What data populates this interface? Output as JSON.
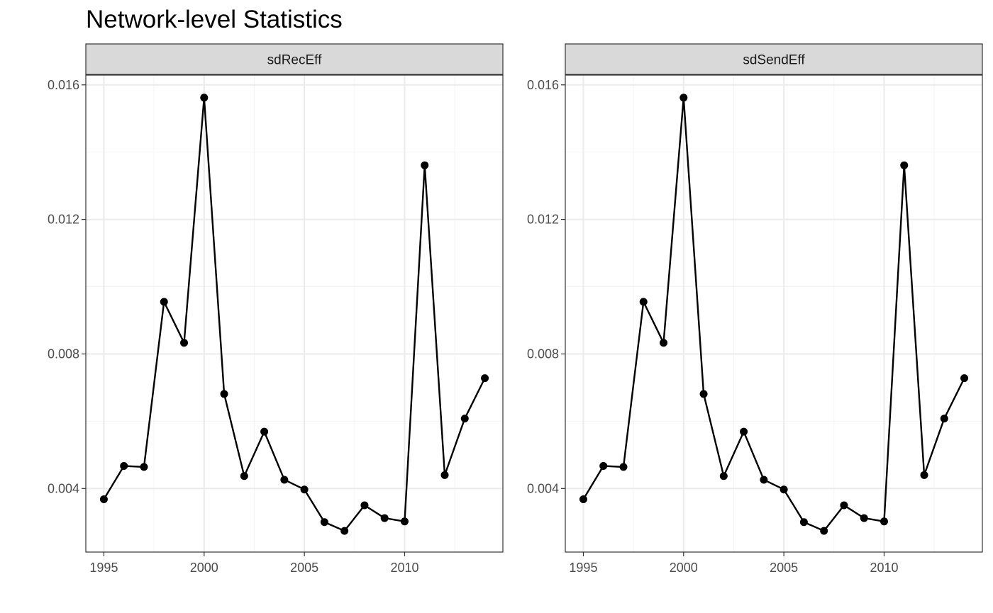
{
  "title": "Network-level Statistics",
  "chart_data": {
    "type": "line",
    "title": "Network-level Statistics",
    "xlabel": "",
    "ylabel": "",
    "grid": true,
    "markers": true,
    "facets": [
      {
        "label": "sdRecEff",
        "x": [
          1995,
          1996,
          1997,
          1998,
          1999,
          2000,
          2001,
          2002,
          2003,
          2004,
          2005,
          2006,
          2007,
          2008,
          2009,
          2010,
          2011,
          2012,
          2013,
          2014
        ],
        "y": [
          0.00368,
          0.00467,
          0.00464,
          0.00955,
          0.00833,
          0.01562,
          0.00681,
          0.00437,
          0.00569,
          0.00426,
          0.00397,
          0.003,
          0.00274,
          0.0035,
          0.00312,
          0.00302,
          0.01361,
          0.0044,
          0.00608,
          0.00728
        ]
      },
      {
        "label": "sdSendEff",
        "x": [
          1995,
          1996,
          1997,
          1998,
          1999,
          2000,
          2001,
          2002,
          2003,
          2004,
          2005,
          2006,
          2007,
          2008,
          2009,
          2010,
          2011,
          2012,
          2013,
          2014
        ],
        "y": [
          0.00368,
          0.00467,
          0.00464,
          0.00955,
          0.00833,
          0.01562,
          0.00681,
          0.00437,
          0.00569,
          0.00426,
          0.00397,
          0.003,
          0.00274,
          0.0035,
          0.00312,
          0.00302,
          0.01361,
          0.0044,
          0.00608,
          0.00728
        ]
      }
    ],
    "xlim": [
      1994.1,
      2014.9
    ],
    "ylim": [
      0.00211,
      0.01629
    ],
    "x_ticks": [
      1995,
      2000,
      2005,
      2010
    ],
    "x_tick_labels": [
      "1995",
      "2000",
      "2005",
      "2010"
    ],
    "y_ticks": [
      0.004,
      0.008,
      0.012,
      0.016
    ],
    "y_tick_labels": [
      "0.004",
      "0.008",
      "0.012",
      "0.016"
    ],
    "x_minor_ticks": [
      1997.5,
      2002.5,
      2007.5,
      2012.5
    ],
    "y_minor_ticks": [
      0.006,
      0.01,
      0.014
    ],
    "colors": {
      "line": "#000000",
      "strip_fill": "#d9d9d9",
      "border": "#333333",
      "grid_major": "#ebebeb",
      "grid_minor": "#f4f4f4",
      "tick_text": "#4d4d4d"
    }
  }
}
